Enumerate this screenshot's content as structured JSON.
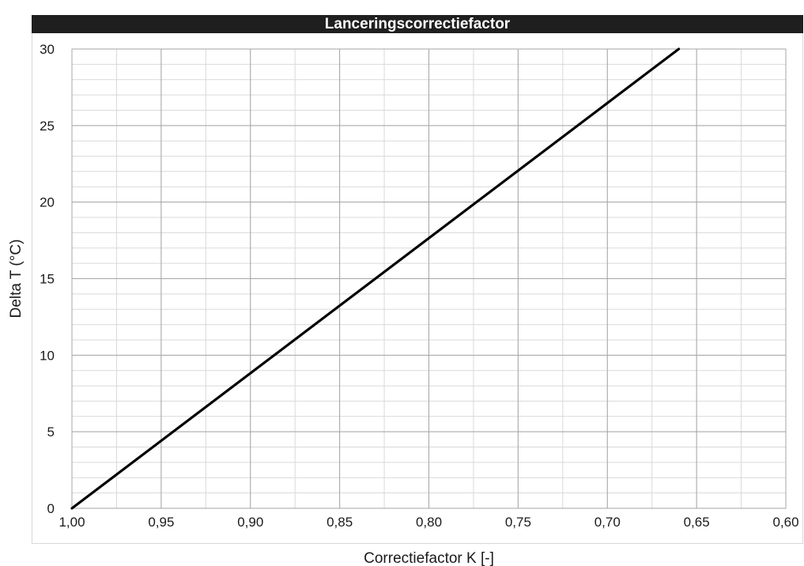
{
  "chart_data": {
    "type": "line",
    "title": "Lanceringscorrectiefactor",
    "xlabel": "Correctiefactor K [-]",
    "ylabel": "Delta T (°C)",
    "xlim": [
      1.0,
      0.6
    ],
    "x_reversed": true,
    "ylim": [
      0,
      30
    ],
    "x_ticks": [
      "1,00",
      "0,95",
      "0,90",
      "0,85",
      "0,80",
      "0,75",
      "0,70",
      "0,65",
      "0,60"
    ],
    "y_ticks": [
      "0",
      "5",
      "10",
      "15",
      "20",
      "25",
      "30"
    ],
    "x_minor_step": 0.025,
    "y_minor_step": 1,
    "grid": true,
    "series": [
      {
        "color": "#000000",
        "x": [
          1.0,
          0.66
        ],
        "y": [
          0,
          30
        ]
      }
    ]
  }
}
